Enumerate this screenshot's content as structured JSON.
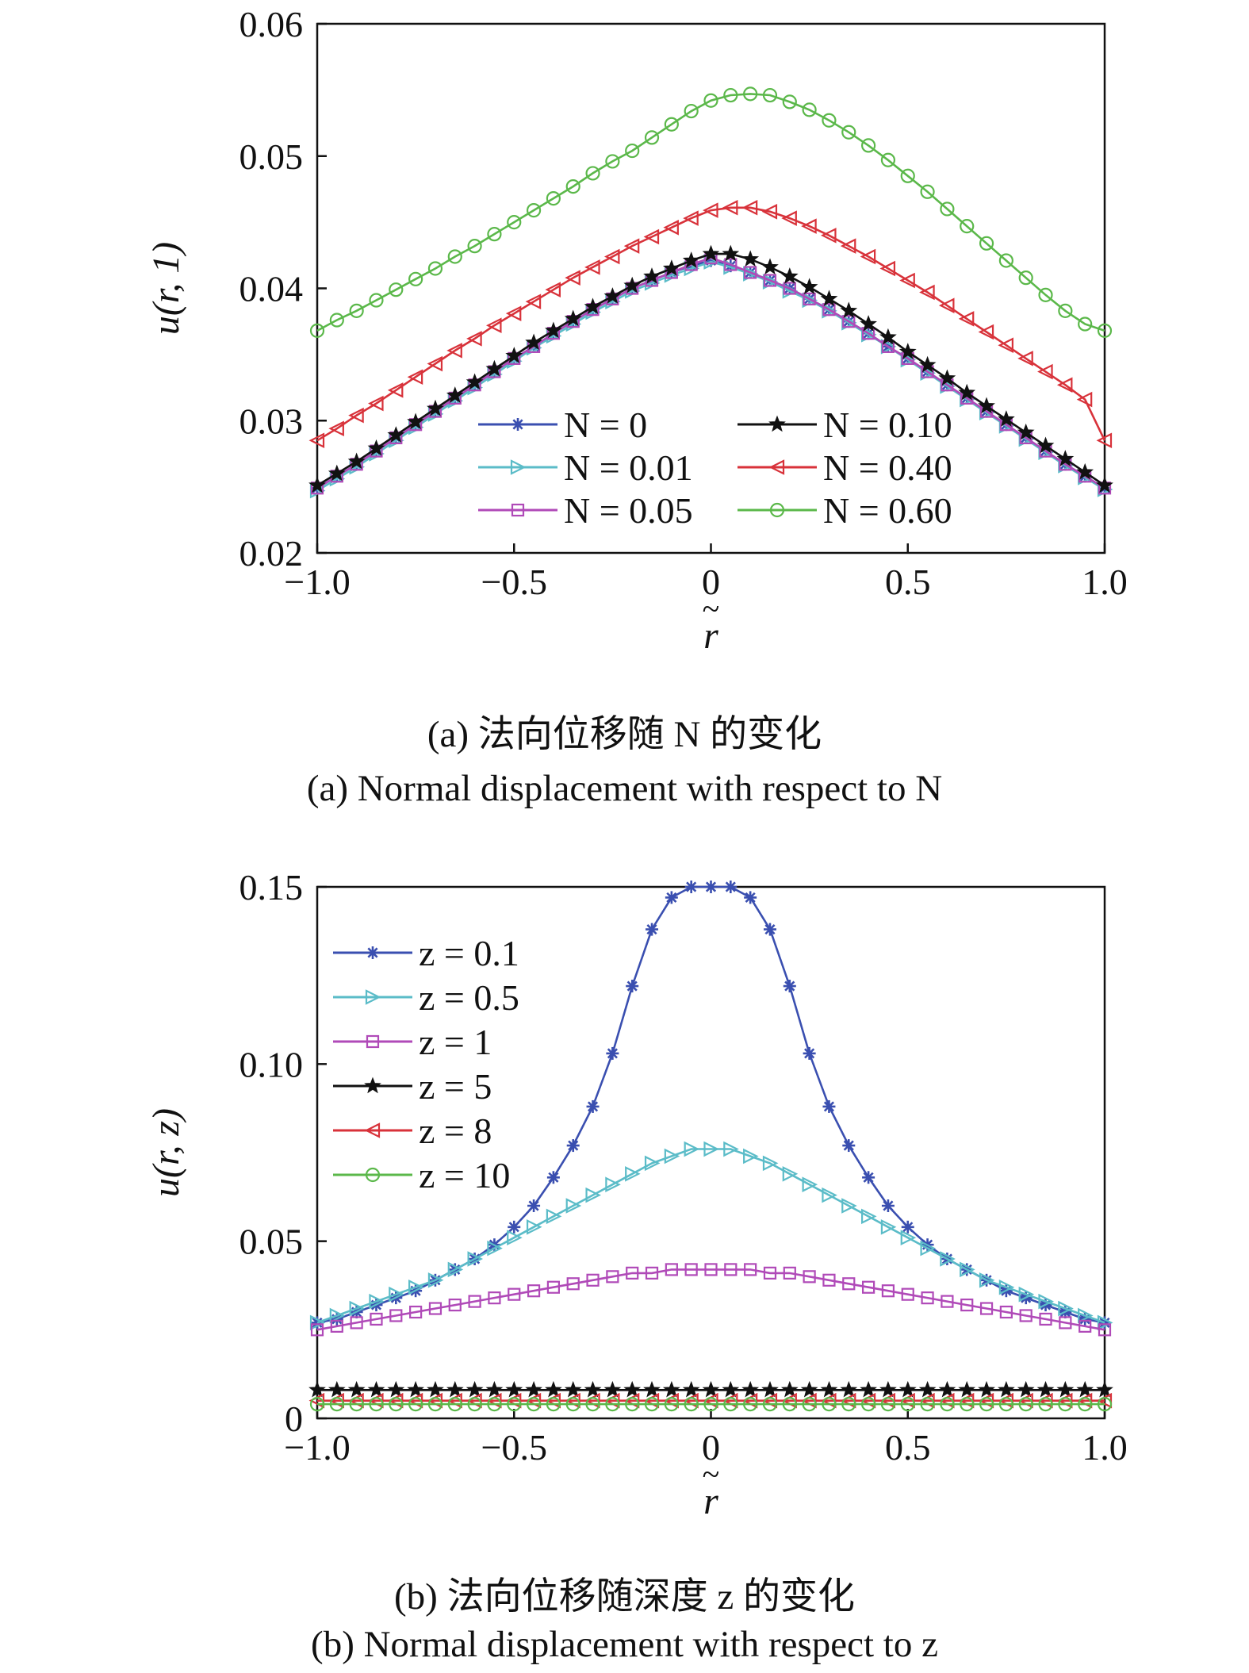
{
  "chart_data": [
    {
      "type": "line",
      "caption_zh": "(a) 法向位移随 N 的变化",
      "caption_en": "(a) Normal displacement with respect to N",
      "xlabel": "r",
      "ylabel": "u(r, 1)",
      "xlim": [
        -1.0,
        1.0
      ],
      "ylim": [
        0.02,
        0.06
      ],
      "xticks": [
        -1.0,
        -0.5,
        0,
        0.5,
        1.0
      ],
      "xtick_labels": [
        "−1.0",
        "−0.5",
        "0",
        "0.5",
        "1.0"
      ],
      "yticks": [
        0.02,
        0.03,
        0.04,
        0.05,
        0.06
      ],
      "ytick_labels": [
        "0.02",
        "0.03",
        "0.04",
        "0.05",
        "0.06"
      ],
      "legend_placement": "bottom-center, two columns",
      "x": [
        -1.0,
        -0.95,
        -0.9,
        -0.85,
        -0.8,
        -0.75,
        -0.7,
        -0.65,
        -0.6,
        -0.55,
        -0.5,
        -0.45,
        -0.4,
        -0.35,
        -0.3,
        -0.25,
        -0.2,
        -0.15,
        -0.1,
        -0.05,
        0,
        0.05,
        0.1,
        0.15,
        0.2,
        0.25,
        0.3,
        0.35,
        0.4,
        0.45,
        0.5,
        0.55,
        0.6,
        0.65,
        0.7,
        0.75,
        0.8,
        0.85,
        0.9,
        0.95,
        1.0
      ],
      "series": [
        {
          "name": "N = 0",
          "color": "#3a4fb0",
          "marker": "asterisk",
          "values": [
            0.0249,
            0.0258,
            0.0267,
            0.0277,
            0.0287,
            0.0297,
            0.0307,
            0.0317,
            0.0327,
            0.0337,
            0.0347,
            0.0356,
            0.0366,
            0.0375,
            0.0384,
            0.0392,
            0.04,
            0.0406,
            0.0412,
            0.0417,
            0.0421,
            0.0417,
            0.0412,
            0.0406,
            0.04,
            0.0392,
            0.0384,
            0.0375,
            0.0366,
            0.0356,
            0.0347,
            0.0337,
            0.0327,
            0.0317,
            0.0307,
            0.0297,
            0.0287,
            0.0277,
            0.0267,
            0.0258,
            0.0249
          ]
        },
        {
          "name": "N = 0.01",
          "color": "#5bbcc8",
          "marker": "triangle-right",
          "values": [
            0.0247,
            0.0256,
            0.0265,
            0.0275,
            0.0285,
            0.0295,
            0.0305,
            0.0315,
            0.0325,
            0.0335,
            0.0345,
            0.0355,
            0.0364,
            0.0373,
            0.0382,
            0.039,
            0.0398,
            0.0404,
            0.041,
            0.0415,
            0.042,
            0.0416,
            0.0411,
            0.0405,
            0.0398,
            0.0391,
            0.0383,
            0.0374,
            0.0365,
            0.0356,
            0.0346,
            0.0336,
            0.0326,
            0.0316,
            0.0306,
            0.0296,
            0.0286,
            0.0276,
            0.0266,
            0.0257,
            0.0248
          ]
        },
        {
          "name": "N = 0.05",
          "color": "#b04ab8",
          "marker": "square",
          "values": [
            0.0249,
            0.0258,
            0.0267,
            0.0277,
            0.0287,
            0.0297,
            0.0307,
            0.0317,
            0.0327,
            0.0337,
            0.0347,
            0.0356,
            0.0366,
            0.0375,
            0.0384,
            0.0392,
            0.04,
            0.0406,
            0.0412,
            0.0418,
            0.0423,
            0.0418,
            0.0412,
            0.0406,
            0.04,
            0.0392,
            0.0384,
            0.0375,
            0.0366,
            0.0356,
            0.0347,
            0.0337,
            0.0327,
            0.0317,
            0.0307,
            0.0297,
            0.0287,
            0.0277,
            0.0267,
            0.0258,
            0.0249
          ]
        },
        {
          "name": "N = 0.10",
          "color": "#111111",
          "marker": "star",
          "values": [
            0.0251,
            0.026,
            0.0269,
            0.0279,
            0.0289,
            0.0299,
            0.0309,
            0.0319,
            0.0329,
            0.0339,
            0.0349,
            0.0359,
            0.0368,
            0.0377,
            0.0386,
            0.0394,
            0.0402,
            0.0409,
            0.0415,
            0.0421,
            0.0426,
            0.0426,
            0.0422,
            0.0416,
            0.0409,
            0.0401,
            0.0392,
            0.0383,
            0.0373,
            0.0363,
            0.0352,
            0.0342,
            0.0332,
            0.0321,
            0.0311,
            0.0301,
            0.0291,
            0.0281,
            0.0271,
            0.0261,
            0.0251
          ]
        },
        {
          "name": "N = 0.40",
          "color": "#d8323a",
          "marker": "triangle-left",
          "values": [
            0.0285,
            0.0294,
            0.0304,
            0.0313,
            0.0323,
            0.0333,
            0.0343,
            0.0353,
            0.0362,
            0.0372,
            0.0381,
            0.039,
            0.0399,
            0.0408,
            0.0416,
            0.0424,
            0.0432,
            0.0439,
            0.0446,
            0.0453,
            0.0459,
            0.0461,
            0.0461,
            0.0458,
            0.0453,
            0.0447,
            0.044,
            0.0432,
            0.0424,
            0.0415,
            0.0406,
            0.0397,
            0.0387,
            0.0377,
            0.0367,
            0.0357,
            0.0347,
            0.0337,
            0.0327,
            0.0316,
            0.0285
          ]
        },
        {
          "name": "N = 0.60",
          "color": "#5bb84a",
          "marker": "circle",
          "values": [
            0.0368,
            0.0376,
            0.0383,
            0.0391,
            0.0399,
            0.0407,
            0.0415,
            0.0424,
            0.0432,
            0.0441,
            0.045,
            0.0459,
            0.0468,
            0.0477,
            0.0487,
            0.0496,
            0.0504,
            0.0514,
            0.0524,
            0.0534,
            0.0542,
            0.0546,
            0.0547,
            0.0546,
            0.0541,
            0.0535,
            0.0527,
            0.0518,
            0.0508,
            0.0497,
            0.0485,
            0.0473,
            0.046,
            0.0447,
            0.0434,
            0.0421,
            0.0408,
            0.0395,
            0.0383,
            0.0373,
            0.0368
          ]
        }
      ]
    },
    {
      "type": "line",
      "caption_zh": "(b) 法向位移随深度 z 的变化",
      "caption_en": "(b) Normal displacement with respect to z",
      "xlabel": "r",
      "ylabel": "u(r, z)",
      "xlim": [
        -1.0,
        1.0
      ],
      "ylim": [
        0,
        0.15
      ],
      "xticks": [
        -1.0,
        -0.5,
        0,
        0.5,
        1.0
      ],
      "xtick_labels": [
        "−1.0",
        "−0.5",
        "0",
        "0.5",
        "1.0"
      ],
      "yticks": [
        0,
        0.05,
        0.1,
        0.15
      ],
      "ytick_labels": [
        "0",
        "0.05",
        "0.10",
        "0.15"
      ],
      "legend_placement": "top-left",
      "x": [
        -1.0,
        -0.95,
        -0.9,
        -0.85,
        -0.8,
        -0.75,
        -0.7,
        -0.65,
        -0.6,
        -0.55,
        -0.5,
        -0.45,
        -0.4,
        -0.35,
        -0.3,
        -0.25,
        -0.2,
        -0.15,
        -0.1,
        -0.05,
        0,
        0.05,
        0.1,
        0.15,
        0.2,
        0.25,
        0.3,
        0.35,
        0.4,
        0.45,
        0.5,
        0.55,
        0.6,
        0.65,
        0.7,
        0.75,
        0.8,
        0.85,
        0.9,
        0.95,
        1.0
      ],
      "series": [
        {
          "name": "z = 0.1",
          "color": "#3a4fb0",
          "marker": "asterisk",
          "values": [
            0.027,
            0.028,
            0.03,
            0.032,
            0.034,
            0.036,
            0.039,
            0.042,
            0.045,
            0.049,
            0.054,
            0.06,
            0.068,
            0.077,
            0.088,
            0.103,
            0.122,
            0.138,
            0.147,
            0.15,
            0.15,
            0.15,
            0.147,
            0.138,
            0.122,
            0.103,
            0.088,
            0.077,
            0.068,
            0.06,
            0.054,
            0.049,
            0.045,
            0.042,
            0.039,
            0.036,
            0.034,
            0.032,
            0.03,
            0.028,
            0.027
          ]
        },
        {
          "name": "z = 0.5",
          "color": "#5bbcc8",
          "marker": "triangle-right",
          "values": [
            0.027,
            0.029,
            0.031,
            0.033,
            0.035,
            0.037,
            0.039,
            0.042,
            0.045,
            0.048,
            0.051,
            0.054,
            0.057,
            0.06,
            0.063,
            0.066,
            0.069,
            0.072,
            0.074,
            0.076,
            0.076,
            0.076,
            0.074,
            0.072,
            0.069,
            0.066,
            0.063,
            0.06,
            0.057,
            0.054,
            0.051,
            0.048,
            0.045,
            0.042,
            0.039,
            0.037,
            0.035,
            0.033,
            0.031,
            0.029,
            0.027
          ]
        },
        {
          "name": "z = 1",
          "color": "#b04ab8",
          "marker": "square",
          "values": [
            0.025,
            0.026,
            0.027,
            0.028,
            0.029,
            0.03,
            0.031,
            0.032,
            0.033,
            0.034,
            0.035,
            0.036,
            0.037,
            0.038,
            0.039,
            0.04,
            0.041,
            0.041,
            0.042,
            0.042,
            0.042,
            0.042,
            0.042,
            0.041,
            0.041,
            0.04,
            0.039,
            0.038,
            0.037,
            0.036,
            0.035,
            0.034,
            0.033,
            0.032,
            0.031,
            0.03,
            0.029,
            0.028,
            0.027,
            0.026,
            0.025
          ]
        },
        {
          "name": "z = 5",
          "color": "#111111",
          "marker": "star",
          "values": [
            0.008,
            0.008,
            0.008,
            0.008,
            0.008,
            0.008,
            0.008,
            0.008,
            0.008,
            0.008,
            0.008,
            0.008,
            0.008,
            0.008,
            0.008,
            0.008,
            0.008,
            0.008,
            0.008,
            0.008,
            0.008,
            0.008,
            0.008,
            0.008,
            0.008,
            0.008,
            0.008,
            0.008,
            0.008,
            0.008,
            0.008,
            0.008,
            0.008,
            0.008,
            0.008,
            0.008,
            0.008,
            0.008,
            0.008,
            0.008,
            0.008
          ]
        },
        {
          "name": "z = 8",
          "color": "#d8323a",
          "marker": "triangle-left",
          "values": [
            0.005,
            0.005,
            0.005,
            0.005,
            0.005,
            0.005,
            0.005,
            0.005,
            0.005,
            0.005,
            0.005,
            0.005,
            0.005,
            0.005,
            0.005,
            0.005,
            0.005,
            0.005,
            0.005,
            0.005,
            0.005,
            0.005,
            0.005,
            0.005,
            0.005,
            0.005,
            0.005,
            0.005,
            0.005,
            0.005,
            0.005,
            0.005,
            0.005,
            0.005,
            0.005,
            0.005,
            0.005,
            0.005,
            0.005,
            0.005,
            0.005
          ]
        },
        {
          "name": "z = 10",
          "color": "#5bb84a",
          "marker": "circle",
          "values": [
            0.004,
            0.004,
            0.004,
            0.004,
            0.004,
            0.004,
            0.004,
            0.004,
            0.004,
            0.004,
            0.004,
            0.004,
            0.004,
            0.004,
            0.004,
            0.004,
            0.004,
            0.004,
            0.004,
            0.004,
            0.004,
            0.004,
            0.004,
            0.004,
            0.004,
            0.004,
            0.004,
            0.004,
            0.004,
            0.004,
            0.004,
            0.004,
            0.004,
            0.004,
            0.004,
            0.004,
            0.004,
            0.004,
            0.004,
            0.004,
            0.004
          ]
        }
      ]
    }
  ]
}
